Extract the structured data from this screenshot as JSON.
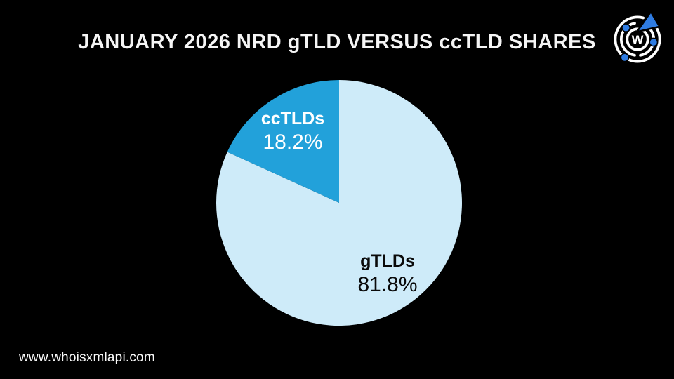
{
  "header": {
    "title": "JANUARY 2026 NRD gTLD VERSUS ccTLD SHARES"
  },
  "logo": {
    "letter": "W",
    "accent_color": "#2F7CE2",
    "ring_color": "#FFFFFF"
  },
  "chart_data": {
    "type": "pie",
    "title": "JANUARY 2026 NRD gTLD VERSUS ccTLD SHARES",
    "start_angle_deg": 0,
    "direction": "clockwise",
    "legend_position": "inside-slices",
    "background_color": "#000000",
    "slices": [
      {
        "label": "gTLDs",
        "value_pct": 81.8,
        "display_value": "81.8%",
        "color": "#CEEBF9",
        "text_color": "#0A0A0A"
      },
      {
        "label": "ccTLDs",
        "value_pct": 18.2,
        "display_value": "18.2%",
        "color": "#22A1DA",
        "text_color": "#FFFFFF"
      }
    ]
  },
  "footer": {
    "url": "www.whoisxmlapi.com"
  }
}
